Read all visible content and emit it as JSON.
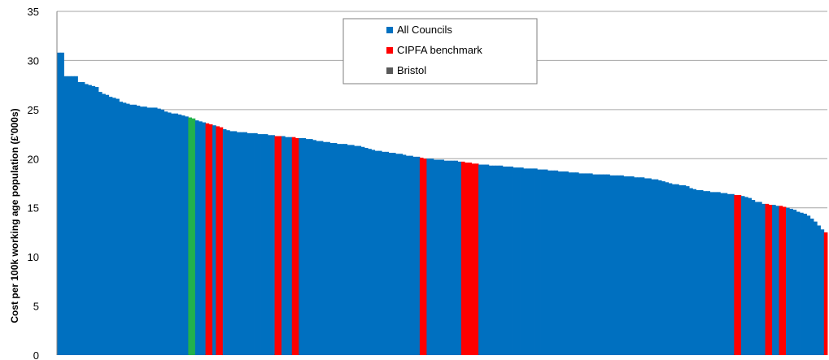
{
  "chart_data": {
    "type": "bar",
    "ylabel": "Cost per 100k working age population (£'000s)",
    "ylim": [
      0,
      35
    ],
    "yticks": [
      0,
      5,
      10,
      15,
      20,
      25,
      30,
      35
    ],
    "grid": true,
    "legend_position": "top-center",
    "legend": [
      {
        "label": "All Councils",
        "color": "#0070c0"
      },
      {
        "label": "CIPFA benchmark",
        "color": "#ff0000"
      },
      {
        "label": "Bristol",
        "color": "#595959"
      }
    ],
    "colors": {
      "all": "#0070c0",
      "benchmark": "#ff0000",
      "highlight": "#22b14c"
    },
    "groups": [
      "all",
      "all",
      "all",
      "all",
      "all",
      "all",
      "all",
      "all",
      "all",
      "all",
      "all",
      "all",
      "all",
      "all",
      "all",
      "all",
      "all",
      "all",
      "all",
      "all",
      "all",
      "all",
      "all",
      "all",
      "all",
      "all",
      "all",
      "all",
      "all",
      "all",
      "all",
      "all",
      "all",
      "all",
      "all",
      "all",
      "all",
      "all",
      "highlight",
      "highlight",
      "all",
      "all",
      "all",
      "benchmark",
      "benchmark",
      "all",
      "benchmark",
      "benchmark",
      "all",
      "all",
      "all",
      "all",
      "all",
      "all",
      "all",
      "all",
      "all",
      "all",
      "all",
      "all",
      "all",
      "all",
      "all",
      "benchmark",
      "benchmark",
      "all",
      "all",
      "all",
      "benchmark",
      "benchmark",
      "all",
      "all",
      "all",
      "all",
      "all",
      "all",
      "all",
      "all",
      "all",
      "all",
      "all",
      "all",
      "all",
      "all",
      "all",
      "all",
      "all",
      "all",
      "all",
      "all",
      "all",
      "all",
      "all",
      "all",
      "all",
      "all",
      "all",
      "all",
      "all",
      "all",
      "all",
      "all",
      "all",
      "all",
      "all",
      "benchmark",
      "benchmark",
      "all",
      "all",
      "all",
      "all",
      "all",
      "all",
      "all",
      "all",
      "all",
      "all",
      "benchmark",
      "benchmark",
      "benchmark",
      "benchmark",
      "benchmark",
      "all",
      "all",
      "all",
      "all",
      "all",
      "all",
      "all",
      "all",
      "all",
      "all",
      "all",
      "all",
      "all",
      "all",
      "all",
      "all",
      "all",
      "all",
      "all",
      "all",
      "all",
      "all",
      "all",
      "all",
      "all",
      "all",
      "all",
      "all",
      "all",
      "all",
      "all",
      "all",
      "all",
      "all",
      "all",
      "all",
      "all",
      "all",
      "all",
      "all",
      "all",
      "all",
      "all",
      "all",
      "all",
      "all",
      "all",
      "all",
      "all",
      "all",
      "all",
      "all",
      "all",
      "all",
      "all",
      "all",
      "all",
      "all",
      "all",
      "all",
      "all",
      "all",
      "all",
      "all",
      "all",
      "all",
      "all",
      "all",
      "all",
      "all",
      "all",
      "all",
      "all",
      "all",
      "benchmark",
      "benchmark",
      "all",
      "all",
      "all",
      "all",
      "all",
      "all",
      "all",
      "benchmark",
      "benchmark",
      "all",
      "all",
      "benchmark",
      "benchmark",
      "all",
      "all",
      "all",
      "all",
      "all",
      "all",
      "all",
      "all",
      "all",
      "all",
      "all",
      "benchmark",
      "benchmark",
      "all",
      "all",
      "all",
      "all",
      "all",
      "all",
      "all",
      "all",
      "all",
      "all",
      "all",
      "all",
      "benchmark",
      "benchmark",
      "all",
      "all",
      "all",
      "benchmark",
      "benchmark",
      "all",
      "all",
      "all",
      "all",
      "all",
      "all",
      "benchmark",
      "benchmark",
      "all",
      "all",
      "all",
      "all",
      "all",
      "all",
      "all"
    ],
    "values": [
      30.8,
      30.8,
      28.4,
      28.4,
      28.4,
      28.4,
      27.8,
      27.8,
      27.6,
      27.5,
      27.4,
      27.3,
      26.8,
      26.6,
      26.5,
      26.3,
      26.2,
      26.1,
      25.8,
      25.7,
      25.6,
      25.5,
      25.5,
      25.4,
      25.3,
      25.3,
      25.2,
      25.2,
      25.2,
      25.1,
      25.0,
      24.8,
      24.7,
      24.6,
      24.6,
      24.5,
      24.4,
      24.3,
      24.2,
      24.1,
      23.9,
      23.8,
      23.7,
      23.6,
      23.5,
      23.4,
      23.3,
      23.2,
      23.0,
      22.9,
      22.8,
      22.8,
      22.7,
      22.7,
      22.7,
      22.6,
      22.6,
      22.6,
      22.5,
      22.5,
      22.5,
      22.4,
      22.4,
      22.3,
      22.3,
      22.3,
      22.2,
      22.2,
      22.2,
      22.1,
      22.1,
      22.1,
      22.0,
      22.0,
      21.9,
      21.8,
      21.8,
      21.7,
      21.7,
      21.6,
      21.6,
      21.5,
      21.5,
      21.5,
      21.4,
      21.4,
      21.3,
      21.3,
      21.2,
      21.1,
      21.0,
      20.9,
      20.8,
      20.8,
      20.7,
      20.7,
      20.6,
      20.6,
      20.5,
      20.5,
      20.4,
      20.3,
      20.3,
      20.2,
      20.2,
      20.1,
      20.0,
      20.0,
      20.0,
      19.9,
      19.9,
      19.9,
      19.8,
      19.8,
      19.8,
      19.8,
      19.7,
      19.7,
      19.6,
      19.6,
      19.5,
      19.5,
      19.4,
      19.4,
      19.4,
      19.3,
      19.3,
      19.3,
      19.3,
      19.2,
      19.2,
      19.2,
      19.1,
      19.1,
      19.1,
      19.0,
      19.0,
      19.0,
      19.0,
      18.9,
      18.9,
      18.9,
      18.8,
      18.8,
      18.8,
      18.7,
      18.7,
      18.7,
      18.6,
      18.6,
      18.6,
      18.5,
      18.5,
      18.5,
      18.5,
      18.4,
      18.4,
      18.4,
      18.4,
      18.4,
      18.3,
      18.3,
      18.3,
      18.3,
      18.2,
      18.2,
      18.2,
      18.1,
      18.1,
      18.1,
      18.0,
      18.0,
      17.9,
      17.9,
      17.8,
      17.7,
      17.6,
      17.5,
      17.4,
      17.4,
      17.3,
      17.3,
      17.2,
      17.0,
      16.9,
      16.8,
      16.8,
      16.7,
      16.7,
      16.6,
      16.6,
      16.6,
      16.5,
      16.5,
      16.4,
      16.4,
      16.3,
      16.3,
      16.2,
      16.1,
      16.0,
      15.8,
      15.6,
      15.6,
      15.4,
      15.4,
      15.3,
      15.3,
      15.2,
      15.2,
      15.1,
      15.0,
      14.9,
      14.8,
      14.6,
      14.5,
      14.4,
      14.2,
      13.9,
      13.6,
      13.2,
      12.8,
      12.5
    ]
  }
}
